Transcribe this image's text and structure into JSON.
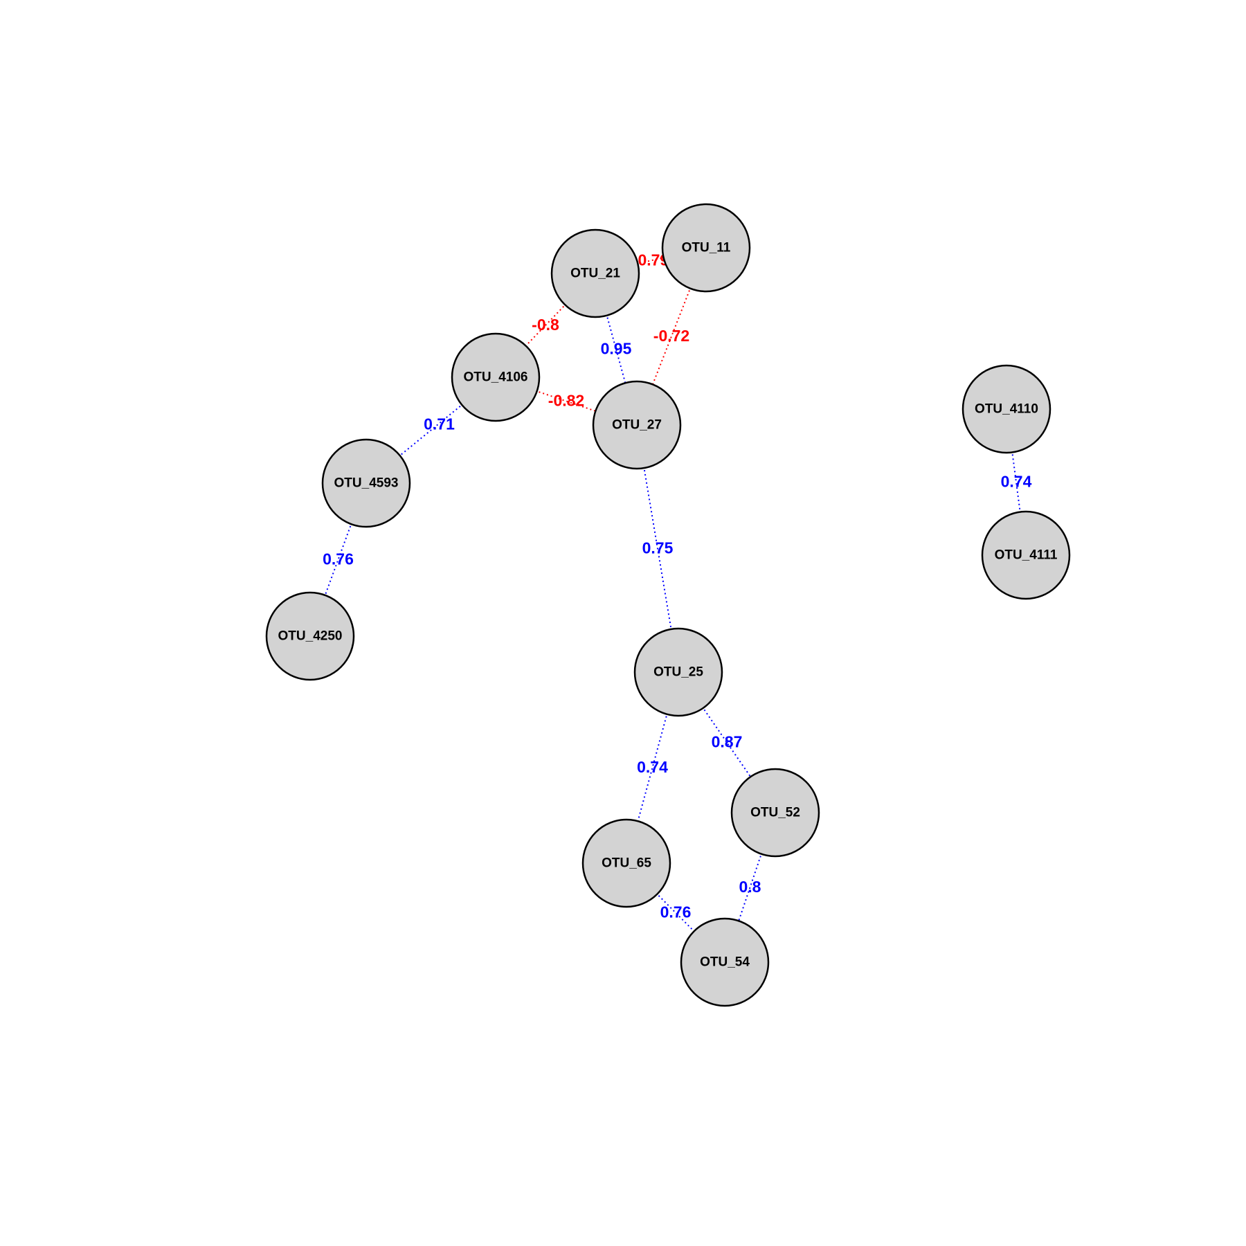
{
  "colors": {
    "positive": "#0000ff",
    "negative": "#ff0000",
    "node_fill": "#d3d3d3",
    "node_stroke": "#000000"
  },
  "nodes": [
    {
      "id": "OTU_11",
      "label": "OTU_11"
    },
    {
      "id": "OTU_21",
      "label": "OTU_21"
    },
    {
      "id": "OTU_4106",
      "label": "OTU_4106"
    },
    {
      "id": "OTU_27",
      "label": "OTU_27"
    },
    {
      "id": "OTU_4593",
      "label": "OTU_4593"
    },
    {
      "id": "OTU_4250",
      "label": "OTU_4250"
    },
    {
      "id": "OTU_25",
      "label": "OTU_25"
    },
    {
      "id": "OTU_52",
      "label": "OTU_52"
    },
    {
      "id": "OTU_65",
      "label": "OTU_65"
    },
    {
      "id": "OTU_54",
      "label": "OTU_54"
    },
    {
      "id": "OTU_4110",
      "label": "OTU_4110"
    },
    {
      "id": "OTU_4111",
      "label": "OTU_4111"
    }
  ],
  "edges": [
    {
      "source": "OTU_21",
      "target": "OTU_11",
      "weight": "-0.79",
      "sign": "negative"
    },
    {
      "source": "OTU_21",
      "target": "OTU_4106",
      "weight": "-0.8",
      "sign": "negative"
    },
    {
      "source": "OTU_21",
      "target": "OTU_27",
      "weight": "0.95",
      "sign": "positive"
    },
    {
      "source": "OTU_11",
      "target": "OTU_27",
      "weight": "-0.72",
      "sign": "negative"
    },
    {
      "source": "OTU_4106",
      "target": "OTU_27",
      "weight": "-0.82",
      "sign": "negative"
    },
    {
      "source": "OTU_4106",
      "target": "OTU_4593",
      "weight": "0.71",
      "sign": "positive"
    },
    {
      "source": "OTU_4593",
      "target": "OTU_4250",
      "weight": "0.76",
      "sign": "positive"
    },
    {
      "source": "OTU_27",
      "target": "OTU_25",
      "weight": "0.75",
      "sign": "positive"
    },
    {
      "source": "OTU_25",
      "target": "OTU_52",
      "weight": "0.87",
      "sign": "positive"
    },
    {
      "source": "OTU_25",
      "target": "OTU_65",
      "weight": "0.74",
      "sign": "positive"
    },
    {
      "source": "OTU_52",
      "target": "OTU_54",
      "weight": "0.8",
      "sign": "positive"
    },
    {
      "source": "OTU_65",
      "target": "OTU_54",
      "weight": "0.76",
      "sign": "positive"
    },
    {
      "source": "OTU_4110",
      "target": "OTU_4111",
      "weight": "0.74",
      "sign": "positive"
    }
  ]
}
